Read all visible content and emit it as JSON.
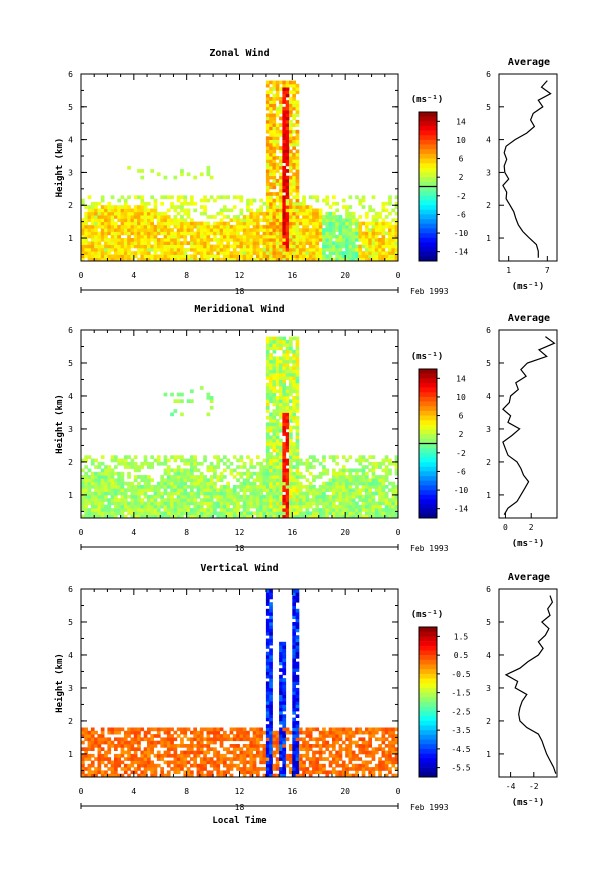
{
  "chart_data": [
    {
      "type": "heatmap",
      "title": "Zonal Wind",
      "ylabel": "Height (km)",
      "ylim": [
        0.3,
        6
      ],
      "yticks": [
        "1",
        "2",
        "3",
        "4",
        "5",
        "6"
      ],
      "xlim": [
        0,
        24
      ],
      "xticks": [
        "0",
        "4",
        "8",
        "12",
        "16",
        "20",
        "0"
      ],
      "date_tick": "18",
      "date_label": "Feb 1993",
      "colorbar": {
        "unit": "(ms⁻¹)",
        "range": [
          -16,
          16
        ],
        "ticks": [
          "14",
          "10",
          "6",
          "2",
          "-2",
          "-6",
          "-10",
          "-14"
        ],
        "zero_line": 0
      },
      "average_profile": {
        "title": "Average",
        "xlabel": "(ms⁻¹)",
        "xlim": [
          -0.5,
          8.5
        ],
        "xticks": [
          "1",
          "7"
        ],
        "heights": [
          0.4,
          0.6,
          0.8,
          1.0,
          1.2,
          1.4,
          1.6,
          1.8,
          2.0,
          2.2,
          2.4,
          2.6,
          2.8,
          3.0,
          3.2,
          3.4,
          3.6,
          3.8,
          4.0,
          4.2,
          4.4,
          4.6,
          4.8,
          5.0,
          5.2,
          5.4,
          5.6,
          5.8
        ],
        "values": [
          5.6,
          5.6,
          5.3,
          4.2,
          3.2,
          2.5,
          2.1,
          1.8,
          1.2,
          0.6,
          0.7,
          0.1,
          1.0,
          0.4,
          0.3,
          0.7,
          0.3,
          0.6,
          2.0,
          3.8,
          5.0,
          4.4,
          4.8,
          6.3,
          5.6,
          7.5,
          6.1,
          7.0
        ]
      }
    },
    {
      "type": "heatmap",
      "title": "Meridional Wind",
      "ylabel": "Height (km)",
      "ylim": [
        0.3,
        6
      ],
      "yticks": [
        "1",
        "2",
        "3",
        "4",
        "5",
        "6"
      ],
      "xlim": [
        0,
        24
      ],
      "xticks": [
        "0",
        "4",
        "8",
        "12",
        "16",
        "20",
        "0"
      ],
      "date_tick": "18",
      "date_label": "Feb 1993",
      "colorbar": {
        "unit": "(ms⁻¹)",
        "range": [
          -16,
          16
        ],
        "ticks": [
          "14",
          "10",
          "6",
          "2",
          "-2",
          "-6",
          "-10",
          "-14"
        ],
        "zero_line": 0
      },
      "average_profile": {
        "title": "Average",
        "xlabel": "(ms⁻¹)",
        "xlim": [
          -0.5,
          4
        ],
        "xticks": [
          "0",
          "2"
        ],
        "heights": [
          0.4,
          0.6,
          0.8,
          1.0,
          1.2,
          1.4,
          1.6,
          1.8,
          2.0,
          2.2,
          2.4,
          2.6,
          2.8,
          3.0,
          3.2,
          3.4,
          3.6,
          3.8,
          4.0,
          4.2,
          4.4,
          4.6,
          4.8,
          5.0,
          5.2,
          5.4,
          5.6,
          5.8
        ],
        "values": [
          -0.1,
          0.2,
          0.9,
          1.2,
          1.5,
          1.8,
          1.4,
          1.2,
          0.9,
          0.2,
          0.0,
          -0.2,
          0.5,
          1.1,
          0.2,
          0.4,
          -0.2,
          0.3,
          0.4,
          1.0,
          0.8,
          1.6,
          1.2,
          1.7,
          3.2,
          2.6,
          3.8,
          3.1
        ]
      }
    },
    {
      "type": "heatmap",
      "title": "Vertical Wind",
      "ylabel": "Height (km)",
      "xlabel": "Local Time",
      "ylim": [
        0.3,
        6
      ],
      "yticks": [
        "1",
        "2",
        "3",
        "4",
        "5",
        "6"
      ],
      "xlim": [
        0,
        24
      ],
      "xticks": [
        "0",
        "4",
        "8",
        "12",
        "16",
        "20",
        "0"
      ],
      "date_tick": "18",
      "date_label": "Feb 1993",
      "colorbar": {
        "unit": "(ms⁻¹)",
        "range": [
          -6,
          2
        ],
        "ticks": [
          "1.5",
          "0.5",
          "-0.5",
          "-1.5",
          "-2.5",
          "-3.5",
          "-4.5",
          "-5.5"
        ]
      },
      "average_profile": {
        "title": "Average",
        "xlabel": "(ms⁻¹)",
        "xlim": [
          -5,
          0
        ],
        "xticks": [
          "-4",
          "-2"
        ],
        "heights": [
          0.4,
          0.6,
          0.8,
          1.0,
          1.2,
          1.4,
          1.6,
          1.8,
          2.0,
          2.2,
          2.4,
          2.6,
          2.8,
          3.0,
          3.2,
          3.4,
          3.6,
          3.8,
          4.0,
          4.2,
          4.4,
          4.6,
          4.8,
          5.0,
          5.2,
          5.4,
          5.6,
          5.8
        ],
        "values": [
          -0.1,
          -0.3,
          -0.6,
          -0.9,
          -1.1,
          -1.3,
          -1.6,
          -2.6,
          -3.2,
          -3.3,
          -3.2,
          -3.0,
          -2.6,
          -3.6,
          -3.4,
          -4.4,
          -3.2,
          -2.5,
          -1.6,
          -1.2,
          -1.6,
          -1.0,
          -0.7,
          -1.3,
          -0.6,
          -0.8,
          -0.4,
          -0.6
        ]
      }
    }
  ]
}
